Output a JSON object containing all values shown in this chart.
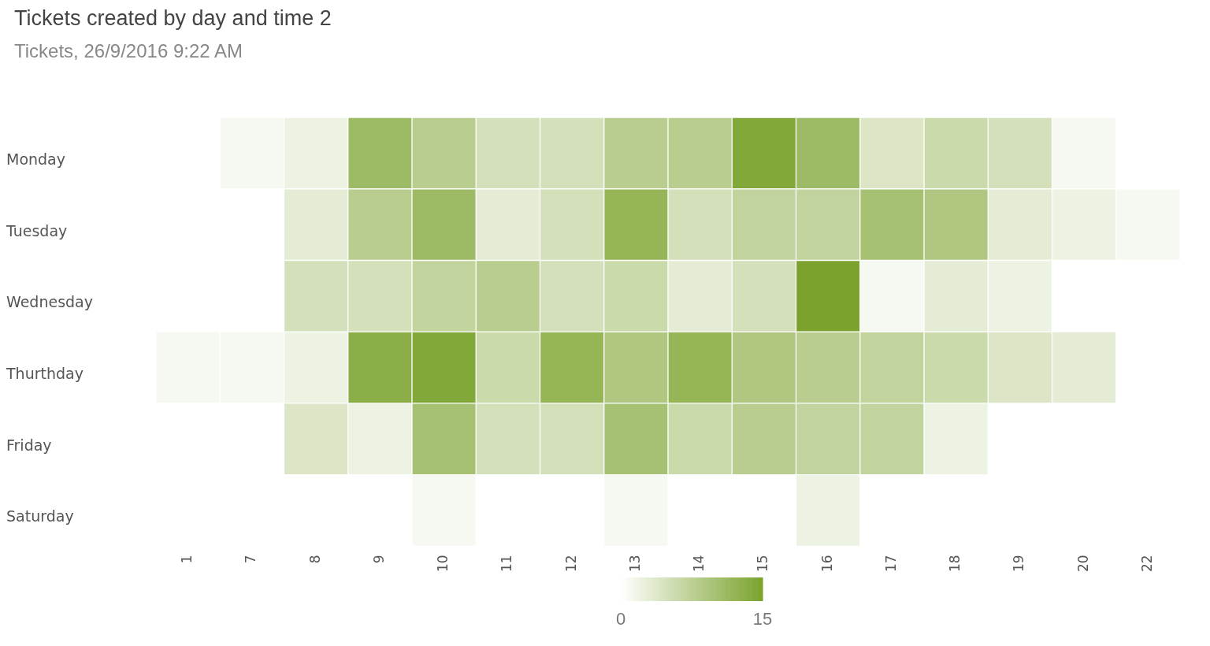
{
  "chart_data": {
    "type": "heatmap",
    "title": "Tickets created by day and time 2",
    "subtitle": "Tickets, 26/9/2016 9:22 AM",
    "categories": [
      "1",
      "7",
      "8",
      "9",
      "10",
      "11",
      "12",
      "13",
      "14",
      "15",
      "16",
      "17",
      "18",
      "19",
      "20",
      "22"
    ],
    "y_categories": [
      "Monday",
      "Tuesday",
      "Wednesday",
      "Thurthday",
      "Friday",
      "Saturday"
    ],
    "cells": [
      [
        null,
        1,
        2,
        11,
        8,
        5,
        5,
        8,
        8,
        14,
        11,
        4,
        6,
        5,
        1,
        null
      ],
      [
        null,
        null,
        3,
        8,
        11,
        3,
        5,
        12,
        5,
        7,
        7,
        10,
        9,
        3,
        2,
        1
      ],
      [
        null,
        null,
        5,
        5,
        7,
        8,
        5,
        6,
        3,
        5,
        15,
        1,
        3,
        2,
        null,
        null
      ],
      [
        1,
        1,
        2,
        13,
        14,
        6,
        12,
        9,
        12,
        9,
        8,
        7,
        6,
        4,
        3,
        null
      ],
      [
        null,
        null,
        4,
        2,
        10,
        5,
        5,
        10,
        6,
        8,
        7,
        7,
        2,
        null,
        null,
        null
      ],
      [
        null,
        null,
        null,
        null,
        1,
        null,
        null,
        1,
        null,
        null,
        2,
        null,
        null,
        null,
        null,
        null
      ]
    ],
    "colors": [
      "#ffffff",
      "#7aa22c"
    ],
    "clim": [
      0,
      15
    ],
    "cticks": [
      0,
      15
    ]
  }
}
